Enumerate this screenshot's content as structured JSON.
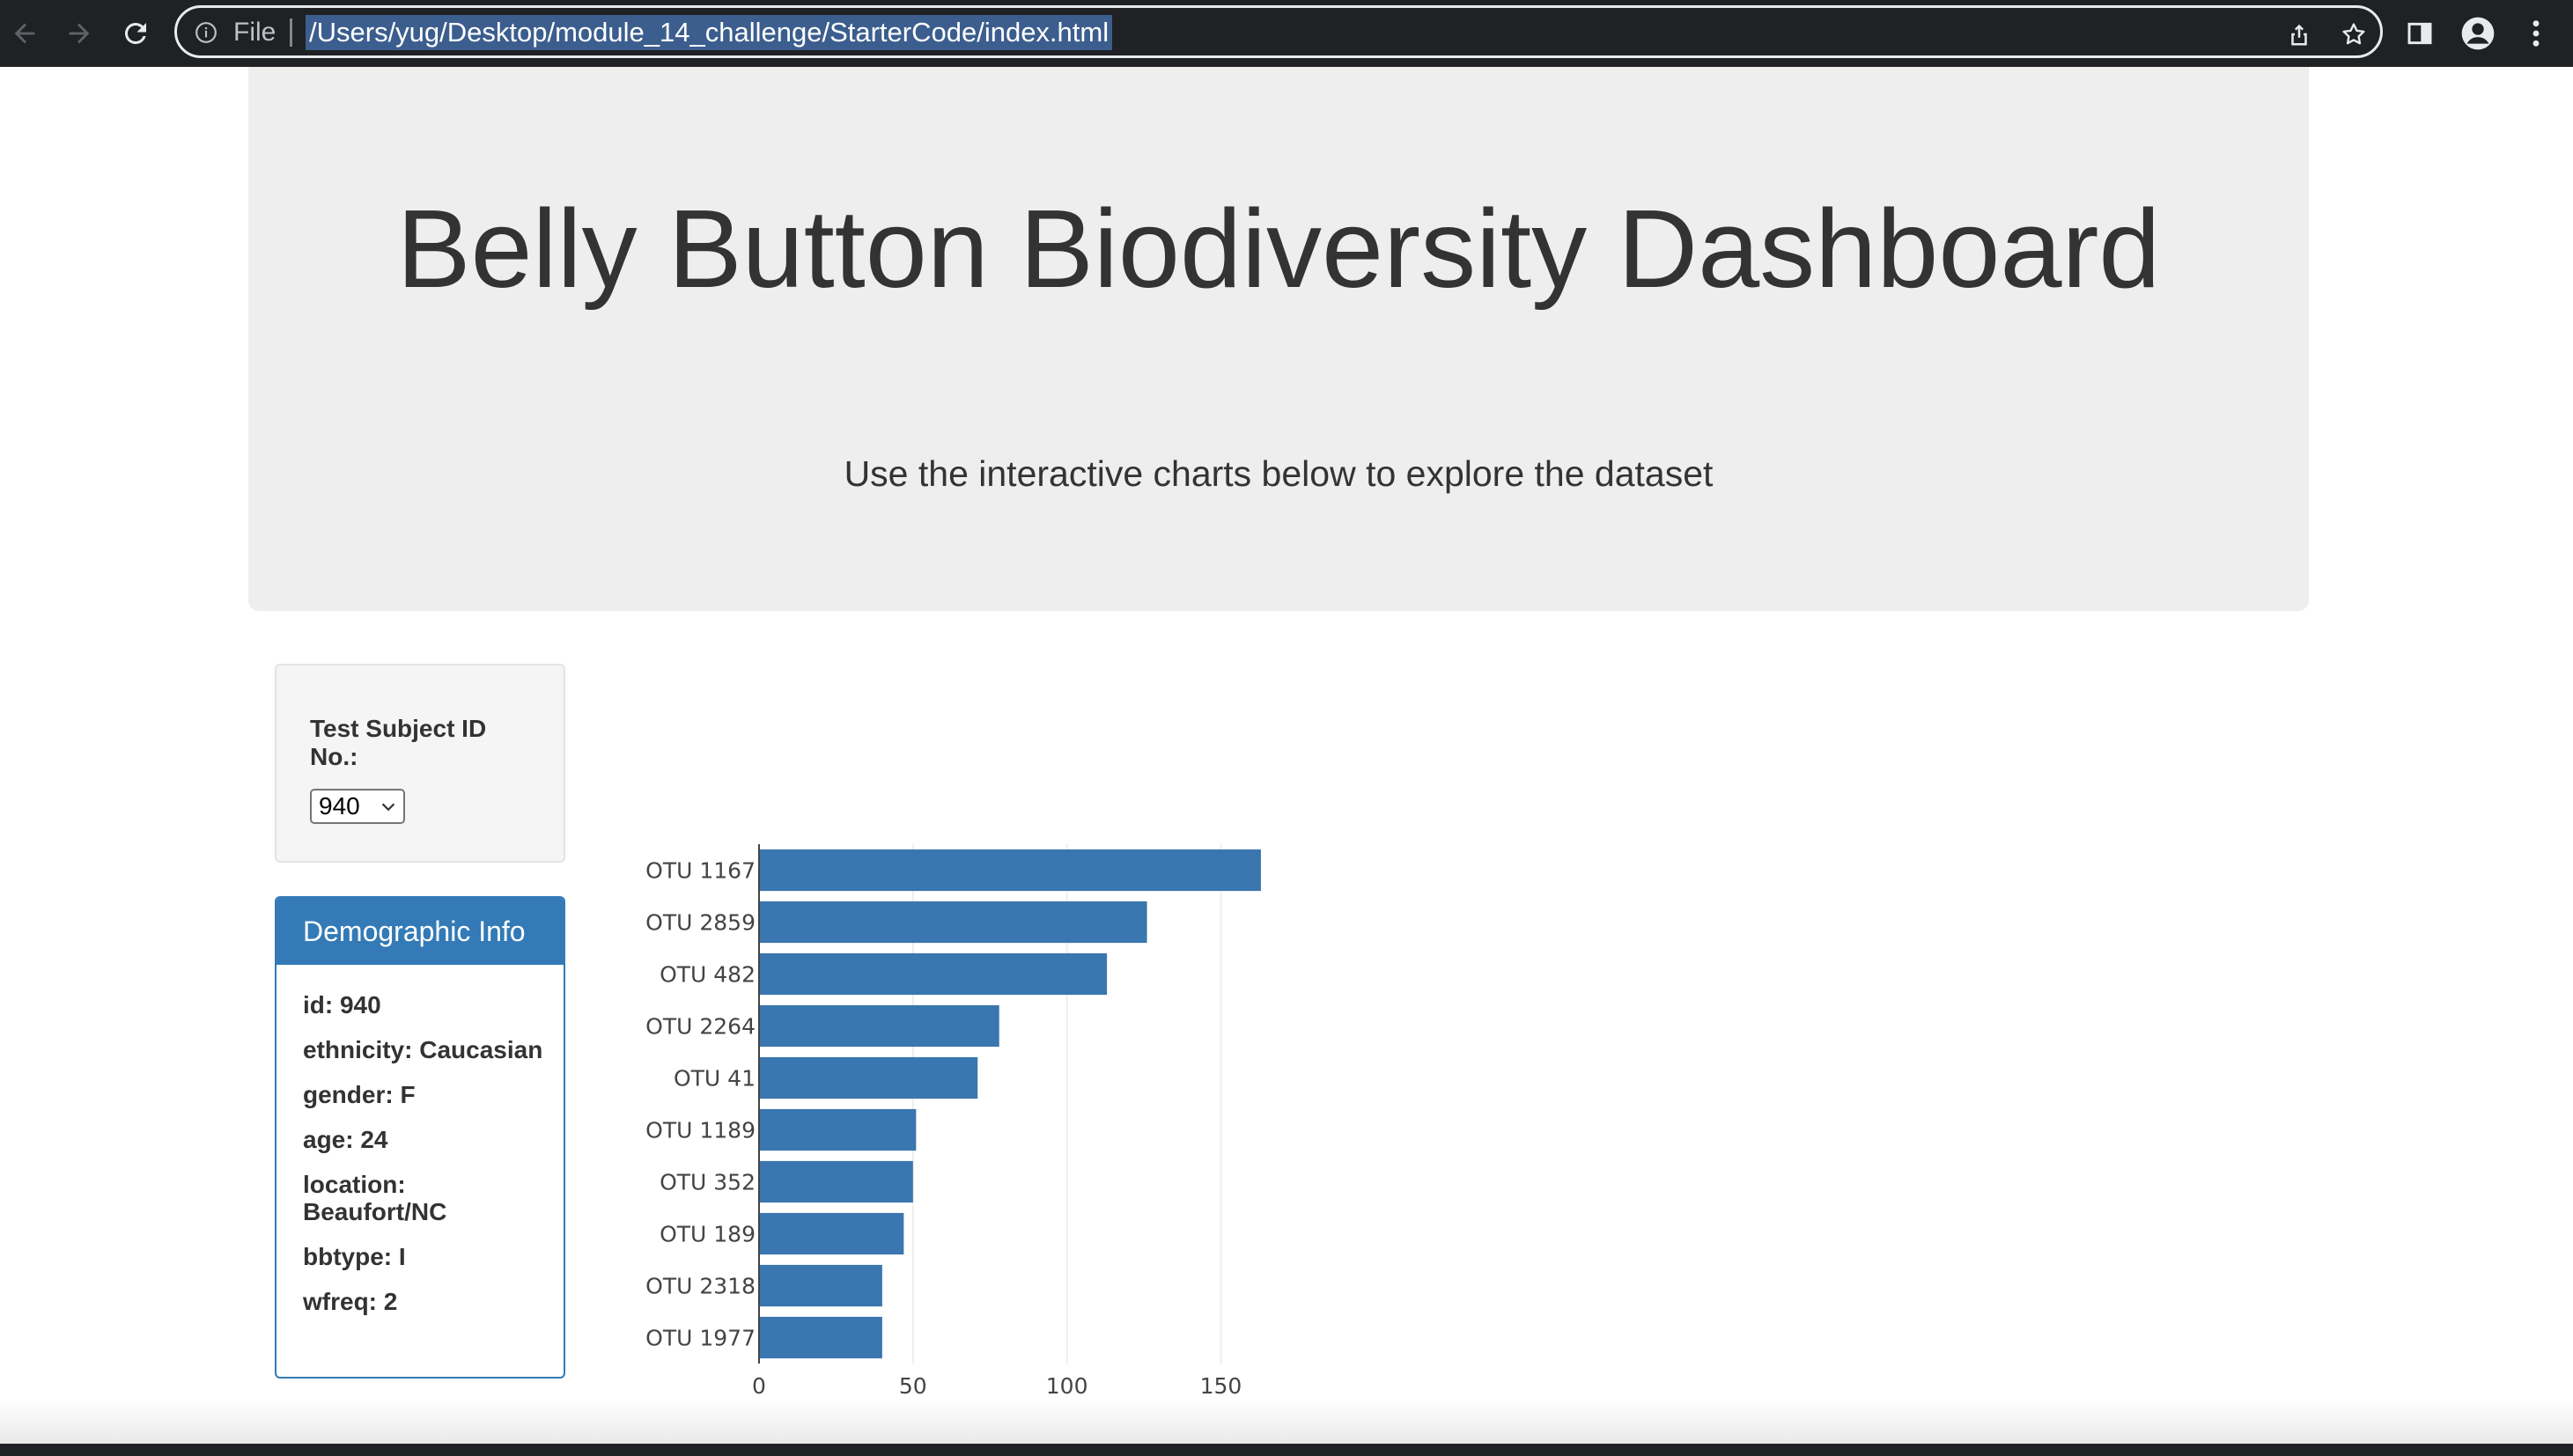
{
  "browser": {
    "scheme_label": "File",
    "url": "/Users/yug/Desktop/module_14_challenge/StarterCode/index.html",
    "icons": [
      "back-arrow-icon",
      "forward-arrow-icon",
      "reload-icon",
      "info-icon",
      "share-icon",
      "star-icon",
      "side-panel-icon",
      "profile-icon",
      "menu-dots-icon"
    ]
  },
  "header": {
    "title": "Belly Button Biodiversity Dashboard",
    "subtitle": "Use the interactive charts below to explore the dataset"
  },
  "selector": {
    "label": "Test Subject ID No.:",
    "selected": "940"
  },
  "demographics": {
    "title": "Demographic Info",
    "rows": [
      "id: 940",
      "ethnicity: Caucasian",
      "gender: F",
      "age: 24",
      "location: Beaufort/NC",
      "bbtype: I",
      "wfreq: 2"
    ]
  },
  "colors": {
    "bar": "#3a76af",
    "panel": "#337ab7",
    "jumbotron": "#eeeeee"
  },
  "chart_data": {
    "type": "bar",
    "orientation": "horizontal",
    "categories": [
      "OTU 1167",
      "OTU 2859",
      "OTU 482",
      "OTU 2264",
      "OTU 41",
      "OTU 1189",
      "OTU 352",
      "OTU 189",
      "OTU 2318",
      "OTU 1977"
    ],
    "values": [
      163,
      126,
      113,
      78,
      71,
      51,
      50,
      47,
      40,
      40
    ],
    "xticks": [
      0,
      50,
      100,
      150
    ],
    "xlim": [
      0,
      171.6
    ],
    "grid": "x",
    "title": "",
    "xlabel": "",
    "ylabel": ""
  }
}
